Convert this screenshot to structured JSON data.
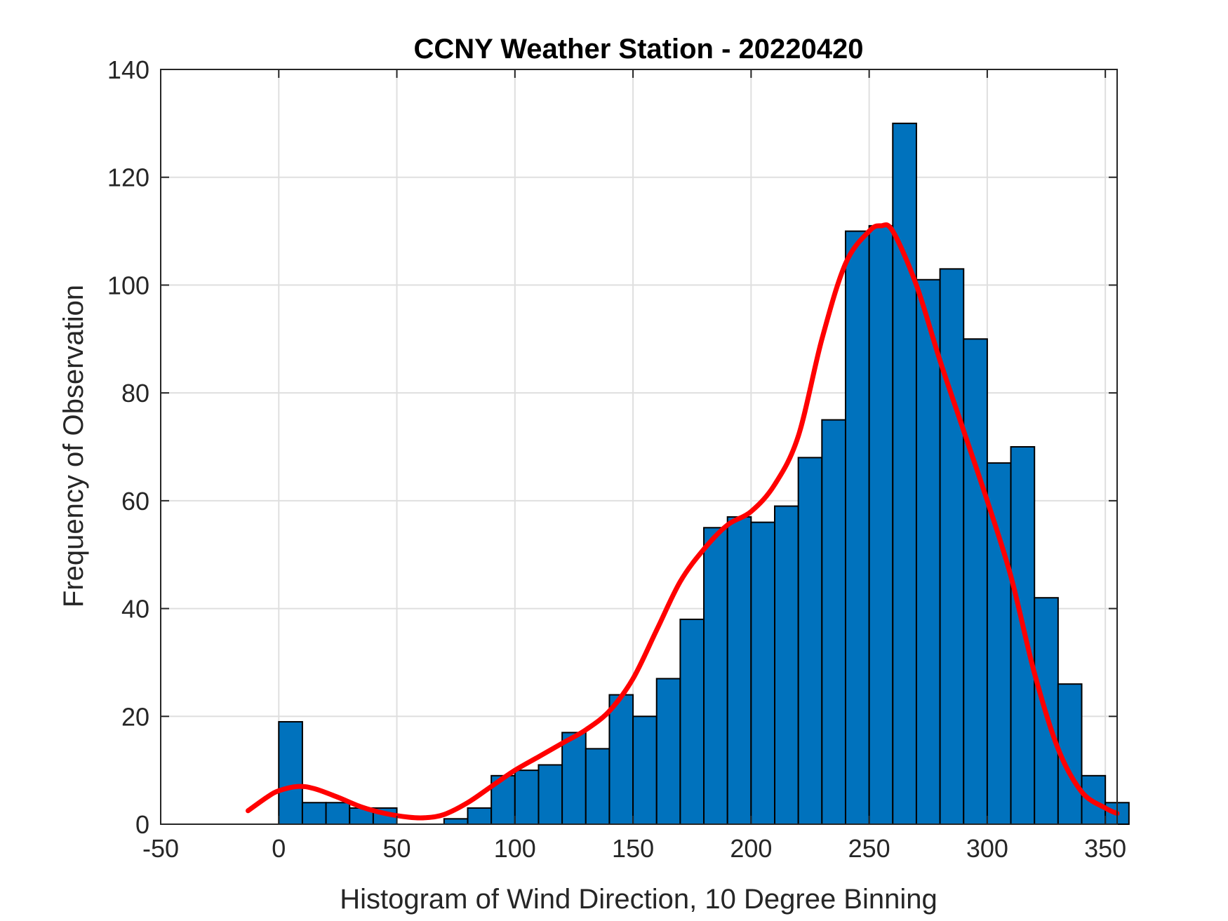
{
  "chart_data": {
    "type": "bar",
    "title": "CCNY Weather Station - 20220420",
    "xlabel": "Histogram of Wind Direction, 10 Degree Binning",
    "ylabel": "Frequency of Observation",
    "xlim": [
      -50,
      355
    ],
    "ylim": [
      0,
      140
    ],
    "xticks": [
      -50,
      0,
      50,
      100,
      150,
      200,
      250,
      300,
      350
    ],
    "yticks": [
      0,
      20,
      40,
      60,
      80,
      100,
      120,
      140
    ],
    "xtick_labels": [
      "-50",
      "0",
      "50",
      "100",
      "150",
      "200",
      "250",
      "300",
      "350"
    ],
    "ytick_labels": [
      "0",
      "20",
      "40",
      "60",
      "80",
      "100",
      "120",
      "140"
    ],
    "grid": true,
    "bin_width": 10,
    "bar_color": "#0072BD",
    "bar_edge_color": "#000000",
    "bins": [
      {
        "start": 0,
        "value": 19
      },
      {
        "start": 10,
        "value": 4
      },
      {
        "start": 20,
        "value": 4
      },
      {
        "start": 30,
        "value": 3
      },
      {
        "start": 40,
        "value": 3
      },
      {
        "start": 50,
        "value": 0
      },
      {
        "start": 60,
        "value": 0
      },
      {
        "start": 70,
        "value": 1
      },
      {
        "start": 80,
        "value": 3
      },
      {
        "start": 90,
        "value": 9
      },
      {
        "start": 100,
        "value": 10
      },
      {
        "start": 110,
        "value": 11
      },
      {
        "start": 120,
        "value": 17
      },
      {
        "start": 130,
        "value": 14
      },
      {
        "start": 140,
        "value": 24
      },
      {
        "start": 150,
        "value": 20
      },
      {
        "start": 160,
        "value": 27
      },
      {
        "start": 170,
        "value": 38
      },
      {
        "start": 180,
        "value": 55
      },
      {
        "start": 190,
        "value": 57
      },
      {
        "start": 200,
        "value": 56
      },
      {
        "start": 210,
        "value": 59
      },
      {
        "start": 220,
        "value": 68
      },
      {
        "start": 230,
        "value": 75
      },
      {
        "start": 240,
        "value": 110
      },
      {
        "start": 250,
        "value": 111
      },
      {
        "start": 260,
        "value": 130
      },
      {
        "start": 270,
        "value": 101
      },
      {
        "start": 280,
        "value": 103
      },
      {
        "start": 290,
        "value": 90
      },
      {
        "start": 300,
        "value": 67
      },
      {
        "start": 310,
        "value": 70
      },
      {
        "start": 320,
        "value": 42
      },
      {
        "start": 330,
        "value": 26
      },
      {
        "start": 340,
        "value": 9
      },
      {
        "start": 350,
        "value": 4
      }
    ],
    "fit_curve": {
      "name": "density fit",
      "color": "#FF0000",
      "x": [
        -13,
        -5,
        0,
        8,
        15,
        25,
        35,
        45,
        55,
        62,
        70,
        80,
        90,
        100,
        110,
        120,
        130,
        140,
        150,
        160,
        170,
        180,
        190,
        200,
        210,
        220,
        230,
        240,
        250,
        255,
        260,
        270,
        280,
        290,
        300,
        310,
        320,
        330,
        340,
        350,
        355
      ],
      "y": [
        2.5,
        5,
        6.2,
        7,
        6.6,
        5,
        3.2,
        2,
        1.3,
        1.2,
        1.8,
        4,
        7,
        10,
        12.5,
        15,
        17.5,
        21,
        27,
        36,
        45,
        51,
        55.5,
        58,
        63,
        72,
        90,
        104,
        110,
        111,
        110,
        100,
        86,
        73,
        60,
        46,
        28,
        14,
        6,
        3,
        2
      ]
    }
  }
}
